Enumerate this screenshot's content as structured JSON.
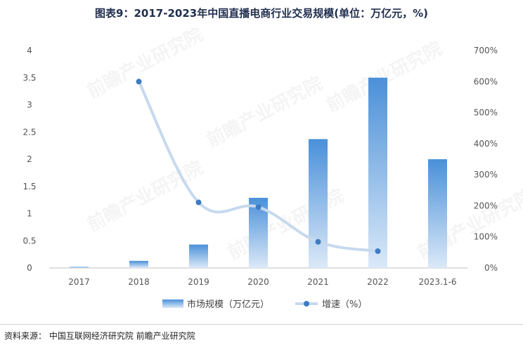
{
  "title": "图表9：2017-2023年中国直播电商行业交易规模(单位：万亿元，%)",
  "source": "资料来源：  中国互联网经济研究院 前瞻产业研究院",
  "watermark": "前瞻产业研究院",
  "colors": {
    "bar_top": "#4a90d9",
    "bar_bottom": "#dbe9f8",
    "line": "#c7d9ee",
    "point": "#3d7cc4"
  },
  "chart_data": {
    "type": "bar",
    "categories": [
      "2017",
      "2018",
      "2019",
      "2020",
      "2021",
      "2022",
      "2023.1-6"
    ],
    "series": [
      {
        "name": "市场规模（万亿元）",
        "type": "bar",
        "axis": "left",
        "values": [
          0.02,
          0.13,
          0.43,
          1.29,
          2.37,
          3.5,
          2.0
        ]
      },
      {
        "name": "增速（%）",
        "type": "line",
        "axis": "right",
        "values": [
          null,
          600,
          211,
          196,
          84,
          54,
          null
        ]
      }
    ],
    "y_left": {
      "min": 0,
      "max": 4,
      "ticks": [
        "0",
        "0.5",
        "1",
        "1.5",
        "2",
        "2.5",
        "3",
        "3.5",
        "4"
      ]
    },
    "y_right": {
      "min": 0,
      "max": 700,
      "ticks": [
        "0%",
        "100%",
        "200%",
        "300%",
        "400%",
        "500%",
        "600%",
        "700%"
      ]
    },
    "legend": {
      "position": "bottom",
      "items": [
        "市场规模（万亿元）",
        "增速（%）"
      ]
    }
  }
}
